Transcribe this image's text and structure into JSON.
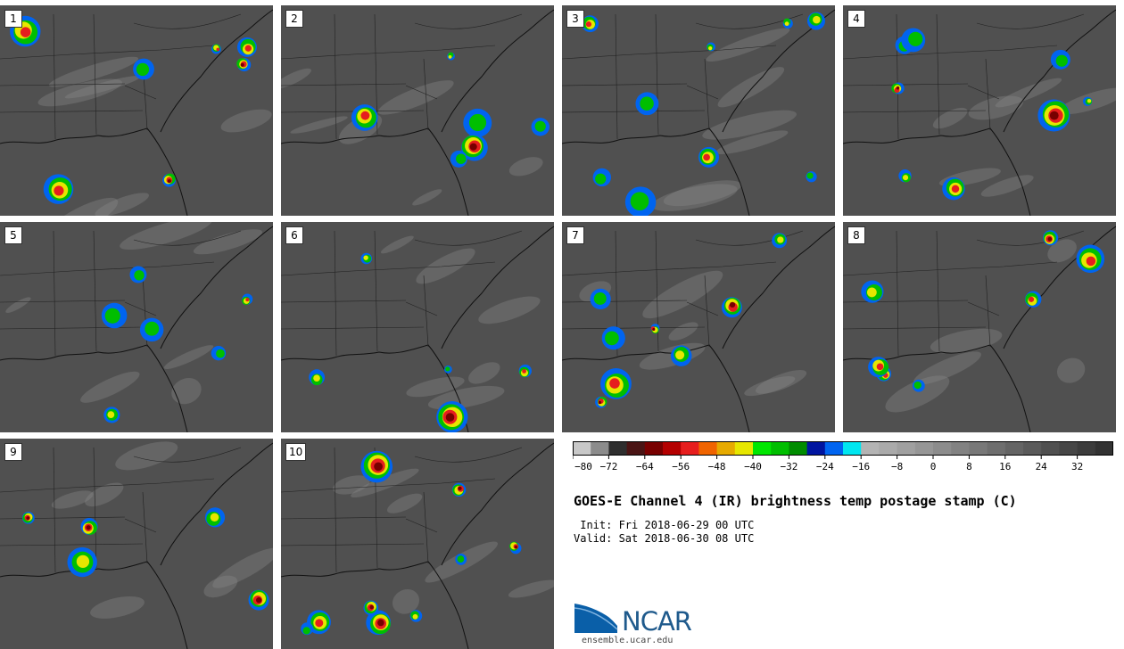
{
  "panels": [
    "1",
    "2",
    "3",
    "4",
    "5",
    "6",
    "7",
    "8",
    "9",
    "10"
  ],
  "colorbar": {
    "colors": [
      "#c8c8c8",
      "#8c8c8c",
      "#2e2e2e",
      "#4a1414",
      "#780000",
      "#b40000",
      "#e61e1e",
      "#f06400",
      "#e6aa00",
      "#e6e600",
      "#00e600",
      "#00be00",
      "#008c00",
      "#0014a0",
      "#0064f0",
      "#00e6f0",
      "#b4b4b4",
      "#aaaaaa",
      "#a0a0a0",
      "#969696",
      "#8c8c8c",
      "#828282",
      "#787878",
      "#6e6e6e",
      "#646464",
      "#5a5a5a",
      "#505050",
      "#464646",
      "#3c3c3c",
      "#323232"
    ],
    "tick_labels": [
      "−80",
      "−72",
      "−64",
      "−56",
      "−48",
      "−40",
      "−32",
      "−24",
      "−16",
      "−8",
      "0",
      "8",
      "16",
      "24",
      "32"
    ]
  },
  "title": "GOES-E Channel 4 (IR) brightness temp postage stamp (C)",
  "init": " Init: Fri 2018-06-29 00 UTC",
  "valid": "Valid: Sat 2018-06-30 08 UTC",
  "logo_text": "NCAR",
  "site": "ensemble.ucar.edu"
}
